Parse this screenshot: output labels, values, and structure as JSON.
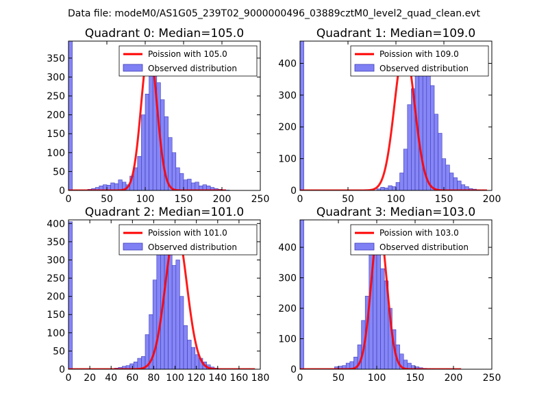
{
  "suptitle": "Data file: modeM0/AS1G05_239T02_9000000496_03889cztM0_level2_quad_clean.evt",
  "colors": {
    "hist_fill": "#8080f5",
    "hist_edge": "#3a3ab8",
    "poisson_line": "#ff0000"
  },
  "chart_data": [
    {
      "type": "bar",
      "title": "Quadrant 0: Median=105.0",
      "xlim": [
        0,
        250
      ],
      "ylim": [
        0,
        395
      ],
      "xticks": [
        "0",
        "50",
        "100",
        "150",
        "200",
        "250"
      ],
      "yticks": [
        "0",
        "50",
        "100",
        "150",
        "200",
        "250",
        "300",
        "350"
      ],
      "ytick_values": [
        0,
        50,
        100,
        150,
        200,
        250,
        300,
        350
      ],
      "xtick_values": [
        0,
        50,
        100,
        150,
        200,
        250
      ],
      "legend": {
        "line_label": "Poission with 105.0",
        "bar_label": "Observed distribution"
      },
      "median": 105.0,
      "line_peak": 378,
      "line_sigma": 10.2,
      "line_x_range": [
        0,
        205
      ],
      "bin_width": 5,
      "bin_start": 0,
      "bin_values": [
        395,
        0,
        0,
        0,
        0,
        3,
        5,
        8,
        12,
        15,
        14,
        20,
        18,
        28,
        22,
        15,
        38,
        60,
        90,
        200,
        255,
        370,
        330,
        285,
        240,
        195,
        140,
        100,
        60,
        45,
        28,
        30,
        20,
        22,
        12,
        15,
        12,
        8,
        5,
        3,
        2,
        1,
        0,
        0,
        0,
        0,
        0,
        0,
        0,
        0
      ]
    },
    {
      "type": "bar",
      "title": "Quadrant 1: Median=109.0",
      "xlim": [
        0,
        200
      ],
      "ylim": [
        0,
        470
      ],
      "xticks": [
        "0",
        "50",
        "100",
        "150",
        "200"
      ],
      "yticks": [
        "0",
        "100",
        "200",
        "300",
        "400"
      ],
      "ytick_values": [
        0,
        100,
        200,
        300,
        400
      ],
      "xtick_values": [
        0,
        50,
        100,
        150,
        200
      ],
      "legend": {
        "line_label": "Poission with 109.0",
        "bar_label": "Observed distribution"
      },
      "median": 109.0,
      "line_peak": 450,
      "line_sigma": 10.4,
      "line_x_range": [
        0,
        195
      ],
      "bin_width": 4,
      "bin_start": 0,
      "bin_values": [
        470,
        0,
        0,
        0,
        0,
        0,
        0,
        0,
        0,
        0,
        0,
        0,
        0,
        0,
        0,
        0,
        0,
        0,
        0,
        0,
        5,
        10,
        8,
        15,
        12,
        25,
        55,
        130,
        270,
        320,
        420,
        450,
        380,
        370,
        330,
        240,
        180,
        100,
        80,
        55,
        40,
        30,
        18,
        12,
        6,
        4,
        2,
        1,
        0,
        0
      ]
    },
    {
      "type": "bar",
      "title": "Quadrant 2: Median=101.0",
      "xlim": [
        0,
        180
      ],
      "ylim": [
        0,
        410
      ],
      "xticks": [
        "0",
        "20",
        "40",
        "60",
        "80",
        "100",
        "120",
        "140",
        "160",
        "180"
      ],
      "yticks": [
        "0",
        "50",
        "100",
        "150",
        "200",
        "250",
        "300",
        "350",
        "400"
      ],
      "ytick_values": [
        0,
        50,
        100,
        150,
        200,
        250,
        300,
        350,
        400
      ],
      "xtick_values": [
        0,
        20,
        40,
        60,
        80,
        100,
        120,
        140,
        160,
        180
      ],
      "legend": {
        "line_label": "Poission with 101.0",
        "bar_label": "Observed distribution"
      },
      "median": 101.0,
      "line_peak": 388,
      "line_sigma": 10.0,
      "line_x_range": [
        0,
        175
      ],
      "bin_width": 3.6,
      "bin_start": 0,
      "bin_values": [
        405,
        0,
        0,
        0,
        0,
        0,
        0,
        0,
        0,
        0,
        0,
        0,
        3,
        5,
        8,
        10,
        15,
        20,
        30,
        35,
        95,
        150,
        245,
        345,
        350,
        385,
        350,
        285,
        300,
        200,
        120,
        80,
        60,
        40,
        30,
        20,
        12,
        6,
        3,
        1,
        0,
        0,
        0,
        0,
        0,
        0,
        0,
        0,
        0,
        0
      ]
    },
    {
      "type": "bar",
      "title": "Quadrant 3: Median=103.0",
      "xlim": [
        0,
        250
      ],
      "ylim": [
        0,
        490
      ],
      "xticks": [
        "0",
        "50",
        "100",
        "150",
        "200",
        "250"
      ],
      "yticks": [
        "0",
        "100",
        "200",
        "300",
        "400"
      ],
      "ytick_values": [
        0,
        100,
        200,
        300,
        400
      ],
      "xtick_values": [
        0,
        50,
        100,
        150,
        200,
        250
      ],
      "legend": {
        "line_label": "Poission with 103.0",
        "bar_label": "Observed distribution"
      },
      "median": 103.0,
      "line_peak": 470,
      "line_sigma": 10.2,
      "line_x_range": [
        0,
        210
      ],
      "bin_width": 5,
      "bin_start": 0,
      "bin_values": [
        490,
        0,
        0,
        0,
        0,
        0,
        0,
        0,
        0,
        8,
        10,
        12,
        20,
        25,
        40,
        80,
        160,
        240,
        380,
        470,
        440,
        330,
        290,
        200,
        130,
        80,
        50,
        30,
        20,
        12,
        8,
        5,
        3,
        2,
        1,
        0,
        0,
        0,
        0,
        0,
        0,
        0,
        0,
        0,
        0,
        0,
        0,
        0,
        0,
        0
      ]
    }
  ]
}
